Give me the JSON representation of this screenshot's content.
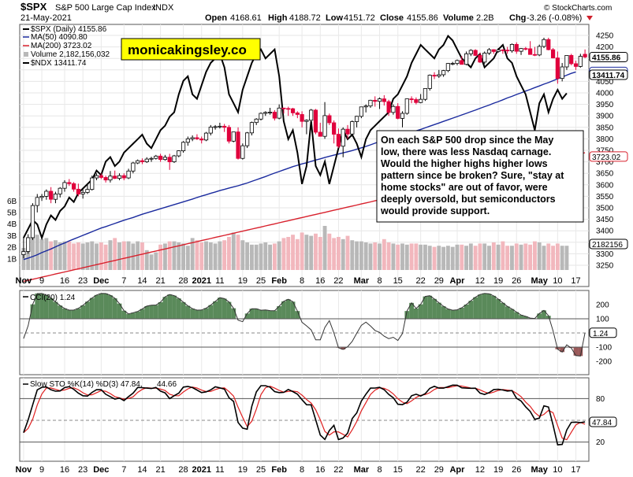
{
  "header": {
    "symbol": "$SPX",
    "name": "S&P 500 Large Cap Index",
    "exchange": "INDX",
    "date": "21-May-2021",
    "open_label": "Open",
    "open": "4168.61",
    "high_label": "High",
    "high": "4188.72",
    "low_label": "Low",
    "low": "4151.72",
    "close_label": "Close",
    "close": "4155.86",
    "volume_label": "Volume",
    "volume": "2.2B",
    "chg_label": "Chg",
    "chg": "-3.26 (-0.08%)",
    "watermark": "© StockCharts.com"
  },
  "banner": "monicakingsley.co",
  "annotation": [
    "On each S&P 500 drop since the May",
    "low, there was less Nasdaq carnage.",
    "Would the higher highs higher lows",
    "pattern since be broken? Sure, \"stay at",
    "home stocks\" are out of favor, were",
    "deeply oversold, but semiconductors",
    "would provide support."
  ],
  "legend": {
    "spx": "$SPX (Daily) 4155.86",
    "ma50": "MA(50) 4090.80",
    "ma200": "MA(200) 3723.02",
    "volume": "Volume 2,182,156,032",
    "ndx": "$NDX 13411.74"
  },
  "colors": {
    "up": "#ffffff",
    "down": "#e0003c",
    "ma50": "#1a2a9e",
    "ma200": "#d8202c",
    "volume": "#b8b8b8",
    "volume_down": "#f2b7bd",
    "cci_fill": "#5a8a5a",
    "cci_neg_fill": "#9a5858",
    "sto_k": "#000000",
    "sto_d": "#e02020",
    "text_red": "#d0202c"
  },
  "x_axis": {
    "labels": [
      {
        "t": "Nov",
        "bold": true
      },
      {
        "t": "9"
      },
      {
        "t": "16"
      },
      {
        "t": "23"
      },
      {
        "t": "Dec",
        "bold": true
      },
      {
        "t": "7"
      },
      {
        "t": "14"
      },
      {
        "t": "21"
      },
      {
        "t": "28"
      },
      {
        "t": "2021",
        "bold": true
      },
      {
        "t": "11"
      },
      {
        "t": "19"
      },
      {
        "t": "25"
      },
      {
        "t": "Feb",
        "bold": true
      },
      {
        "t": "8"
      },
      {
        "t": "16"
      },
      {
        "t": "22"
      },
      {
        "t": "Mar",
        "bold": true
      },
      {
        "t": "8"
      },
      {
        "t": "15"
      },
      {
        "t": "22"
      },
      {
        "t": "29"
      },
      {
        "t": "Apr",
        "bold": true
      },
      {
        "t": "12"
      },
      {
        "t": "19"
      },
      {
        "t": "26"
      },
      {
        "t": "May",
        "bold": true
      },
      {
        "t": "10"
      },
      {
        "t": "17"
      }
    ]
  },
  "price_axis": {
    "ticks": [
      "4250",
      "4200",
      "4150",
      "4100",
      "4050",
      "4000",
      "3950",
      "3900",
      "3850",
      "3800",
      "3750",
      "3700",
      "3650",
      "3600",
      "3550",
      "3500",
      "3450",
      "3400",
      "3350",
      "3300",
      "3250"
    ],
    "tags": [
      {
        "t": "4155.86",
        "bold": true
      },
      {
        "t": "4090.80"
      },
      {
        "t": "13411.74",
        "bold": true
      },
      {
        "t": "3723.02"
      },
      {
        "t": "2182156"
      }
    ]
  },
  "volume_axis": {
    "ticks": [
      "6B",
      "5B",
      "4B",
      "3B",
      "2B",
      "1B"
    ]
  },
  "cci": {
    "label": "CCI(20) 1.24",
    "ticks": [
      "200",
      "100",
      "-100",
      "-200"
    ],
    "tag": "1.24"
  },
  "sto": {
    "label": "Slow STO %K(14) %D(3) 47.84,",
    "label_d": "44.66",
    "ticks": [
      "80",
      "20"
    ],
    "tag": "47.84"
  },
  "chart_data": {
    "type": "candlestick",
    "title": "$SPX S&P 500 Large Cap Index",
    "ylim": [
      3200,
      4260
    ],
    "spx_ohlc": [
      [
        3296,
        3371,
        3280,
        3310
      ],
      [
        3310,
        3385,
        3300,
        3370
      ],
      [
        3370,
        3520,
        3360,
        3510
      ],
      [
        3510,
        3560,
        3480,
        3545
      ],
      [
        3545,
        3560,
        3530,
        3550
      ],
      [
        3550,
        3580,
        3535,
        3572
      ],
      [
        3572,
        3590,
        3520,
        3537
      ],
      [
        3537,
        3570,
        3520,
        3560
      ],
      [
        3560,
        3590,
        3545,
        3585
      ],
      [
        3585,
        3620,
        3570,
        3610
      ],
      [
        3610,
        3625,
        3595,
        3605
      ],
      [
        3605,
        3612,
        3570,
        3581
      ],
      [
        3581,
        3605,
        3550,
        3560
      ],
      [
        3560,
        3580,
        3540,
        3567
      ],
      [
        3567,
        3600,
        3560,
        3580
      ],
      [
        3580,
        3640,
        3575,
        3630
      ],
      [
        3630,
        3650,
        3620,
        3640
      ],
      [
        3640,
        3650,
        3625,
        3632
      ],
      [
        3632,
        3640,
        3610,
        3621
      ],
      [
        3621,
        3660,
        3610,
        3638
      ],
      [
        3638,
        3662,
        3625,
        3628
      ],
      [
        3628,
        3650,
        3620,
        3640
      ],
      [
        3640,
        3650,
        3620,
        3630
      ],
      [
        3630,
        3670,
        3625,
        3660
      ],
      [
        3660,
        3700,
        3650,
        3695
      ],
      [
        3695,
        3710,
        3690,
        3705
      ],
      [
        3705,
        3715,
        3690,
        3700
      ],
      [
        3700,
        3720,
        3695,
        3712
      ],
      [
        3712,
        3722,
        3700,
        3715
      ],
      [
        3715,
        3730,
        3710,
        3725
      ],
      [
        3725,
        3735,
        3700,
        3710
      ],
      [
        3710,
        3730,
        3705,
        3720
      ],
      [
        3720,
        3735,
        3665,
        3700
      ],
      [
        3700,
        3730,
        3695,
        3726
      ],
      [
        3726,
        3750,
        3720,
        3748
      ],
      [
        3748,
        3790,
        3740,
        3785
      ],
      [
        3785,
        3810,
        3770,
        3800
      ],
      [
        3800,
        3815,
        3790,
        3805
      ],
      [
        3805,
        3820,
        3795,
        3800
      ],
      [
        3800,
        3810,
        3780,
        3795
      ],
      [
        3795,
        3830,
        3790,
        3825
      ],
      [
        3825,
        3860,
        3815,
        3851
      ],
      [
        3851,
        3860,
        3840,
        3853
      ],
      [
        3853,
        3870,
        3845,
        3855
      ],
      [
        3855,
        3865,
        3830,
        3850
      ],
      [
        3850,
        3860,
        3780,
        3790
      ],
      [
        3790,
        3830,
        3785,
        3830
      ],
      [
        3830,
        3850,
        3710,
        3715
      ],
      [
        3715,
        3780,
        3710,
        3770
      ],
      [
        3770,
        3830,
        3760,
        3826
      ],
      [
        3826,
        3875,
        3815,
        3871
      ],
      [
        3871,
        3890,
        3860,
        3886
      ],
      [
        3886,
        3915,
        3880,
        3911
      ],
      [
        3911,
        3920,
        3900,
        3915
      ],
      [
        3915,
        3935,
        3905,
        3916
      ],
      [
        3916,
        3925,
        3880,
        3890
      ],
      [
        3890,
        3950,
        3885,
        3934
      ],
      [
        3934,
        3935,
        3910,
        3932
      ],
      [
        3932,
        3940,
        3900,
        3931
      ],
      [
        3931,
        3935,
        3900,
        3913
      ],
      [
        3913,
        3920,
        3890,
        3906
      ],
      [
        3906,
        3920,
        3850,
        3876
      ],
      [
        3876,
        3885,
        3820,
        3881
      ],
      [
        3881,
        3930,
        3870,
        3925
      ],
      [
        3925,
        3930,
        3820,
        3829
      ],
      [
        3829,
        3870,
        3810,
        3811
      ],
      [
        3811,
        3960,
        3800,
        3901
      ],
      [
        3901,
        3910,
        3860,
        3870
      ],
      [
        3870,
        3880,
        3780,
        3820
      ],
      [
        3820,
        3845,
        3760,
        3768
      ],
      [
        3768,
        3850,
        3720,
        3842
      ],
      [
        3842,
        3860,
        3800,
        3821
      ],
      [
        3821,
        3880,
        3810,
        3875
      ],
      [
        3875,
        3900,
        3850,
        3898
      ],
      [
        3898,
        3940,
        3890,
        3939
      ],
      [
        3939,
        3950,
        3915,
        3943
      ],
      [
        3943,
        3970,
        3935,
        3968
      ],
      [
        3968,
        3985,
        3940,
        3963
      ],
      [
        3963,
        3980,
        3930,
        3974
      ],
      [
        3974,
        3990,
        3945,
        3962
      ],
      [
        3962,
        3970,
        3900,
        3915
      ],
      [
        3915,
        3950,
        3905,
        3941
      ],
      [
        3941,
        3955,
        3885,
        3889
      ],
      [
        3889,
        3920,
        3850,
        3911
      ],
      [
        3911,
        3970,
        3905,
        3974
      ],
      [
        3974,
        3985,
        3955,
        3971
      ],
      [
        3971,
        3980,
        3950,
        3958
      ],
      [
        3958,
        3995,
        3955,
        3972
      ],
      [
        3972,
        4020,
        3965,
        4019
      ],
      [
        4019,
        4080,
        4010,
        4077
      ],
      [
        4077,
        4090,
        4060,
        4073
      ],
      [
        4073,
        4100,
        4065,
        4079
      ],
      [
        4079,
        4100,
        4070,
        4097
      ],
      [
        4097,
        4130,
        4090,
        4128
      ],
      [
        4128,
        4135,
        4120,
        4128
      ],
      [
        4128,
        4145,
        4120,
        4141
      ],
      [
        4141,
        4160,
        4135,
        4124
      ],
      [
        4124,
        4180,
        4120,
        4170
      ],
      [
        4170,
        4190,
        4160,
        4185
      ],
      [
        4185,
        4190,
        4160,
        4163
      ],
      [
        4163,
        4175,
        4130,
        4134
      ],
      [
        4134,
        4180,
        4125,
        4173
      ],
      [
        4173,
        4195,
        4165,
        4188
      ],
      [
        4188,
        4190,
        4170,
        4180
      ],
      [
        4180,
        4195,
        4175,
        4187
      ],
      [
        4187,
        4190,
        4170,
        4186
      ],
      [
        4186,
        4200,
        4170,
        4183
      ],
      [
        4183,
        4215,
        4175,
        4211
      ],
      [
        4211,
        4220,
        4170,
        4181
      ],
      [
        4181,
        4195,
        4165,
        4193
      ],
      [
        4193,
        4200,
        4185,
        4192
      ],
      [
        4192,
        4225,
        4188,
        4167
      ],
      [
        4167,
        4200,
        4160,
        4165
      ],
      [
        4165,
        4210,
        4160,
        4202
      ],
      [
        4202,
        4240,
        4195,
        4232
      ],
      [
        4232,
        4240,
        4185,
        4188
      ],
      [
        4188,
        4195,
        4150,
        4152
      ],
      [
        4152,
        4180,
        4040,
        4063
      ],
      [
        4063,
        4130,
        4050,
        4113
      ],
      [
        4113,
        4150,
        4100,
        4163
      ],
      [
        4163,
        4170,
        4120,
        4127
      ],
      [
        4127,
        4140,
        4100,
        4115
      ],
      [
        4115,
        4170,
        4110,
        4159
      ],
      [
        4168,
        4189,
        4151,
        4156
      ]
    ],
    "volume_billions": [
      2.0,
      2.1,
      3.6,
      3.2,
      2.8,
      2.9,
      2.6,
      2.7,
      2.5,
      2.6,
      2.6,
      2.4,
      2.5,
      2.4,
      2.5,
      2.6,
      2.4,
      2.5,
      2.3,
      2.7,
      2.9,
      2.5,
      2.6,
      2.6,
      2.4,
      2.6,
      2.5,
      1.8,
      1.4,
      1.6,
      2.3,
      2.4,
      2.6,
      2.6,
      2.5,
      2.4,
      2.2,
      2.9,
      2.7,
      2.5,
      2.6,
      2.5,
      2.4,
      2.6,
      2.7,
      3.0,
      3.4,
      3.2,
      2.7,
      2.5,
      2.3,
      2.3,
      2.4,
      2.5,
      2.3,
      2.4,
      2.6,
      2.9,
      3.0,
      3.2,
      2.8,
      3.4,
      3.2,
      3.1,
      3.3,
      3.0,
      4.0,
      3.3,
      2.9,
      3.0,
      2.8,
      3.1,
      2.7,
      2.6,
      2.6,
      2.5,
      2.4,
      2.5,
      2.4,
      2.8,
      2.5,
      2.4,
      2.3,
      2.4,
      2.3,
      2.4,
      2.4,
      2.3,
      2.3,
      2.2,
      2.1,
      2.2,
      2.1,
      2.2,
      2.1,
      2.3,
      2.3,
      2.2,
      2.4,
      2.2,
      2.4,
      2.4,
      2.2,
      2.5,
      2.3,
      2.6,
      2.2,
      2.2,
      2.4,
      2.3,
      2.4,
      2.3,
      2.6,
      2.5,
      2.2,
      2.4,
      2.2,
      2.4,
      2.2,
      2.2
    ],
    "ma50": [
      3275,
      3281,
      3288,
      3296,
      3305,
      3313,
      3321,
      3330,
      3339,
      3347,
      3356,
      3364,
      3372,
      3380,
      3388,
      3396,
      3404,
      3412,
      3418,
      3425,
      3432,
      3439,
      3446,
      3452,
      3458,
      3465,
      3472,
      3478,
      3484,
      3490,
      3496,
      3502,
      3508,
      3514,
      3520,
      3526,
      3532,
      3538,
      3545,
      3551,
      3557,
      3563,
      3569,
      3575,
      3580,
      3586,
      3591,
      3596,
      3602,
      3608,
      3615,
      3622,
      3629,
      3636,
      3644,
      3651,
      3658,
      3665,
      3672,
      3679,
      3685,
      3691,
      3696,
      3702,
      3708,
      3713,
      3719,
      3724,
      3729,
      3734,
      3739,
      3744,
      3749,
      3755,
      3761,
      3767,
      3774,
      3781,
      3788,
      3795,
      3801,
      3807,
      3813,
      3818,
      3823,
      3829,
      3835,
      3841,
      3848,
      3855,
      3862,
      3869,
      3876,
      3883,
      3890,
      3897,
      3904,
      3911,
      3918,
      3925,
      3933,
      3940,
      3947,
      3955,
      3962,
      3970,
      3978,
      3985,
      3993,
      4000,
      4008,
      4015,
      4023,
      4030,
      4038,
      4045,
      4053,
      4061,
      4069,
      4077,
      4085,
      4091
    ],
    "ndx": [
      11800,
      11900,
      12000,
      11950,
      11800,
      11950,
      12050,
      12000,
      12100,
      12150,
      12250,
      12200,
      12300,
      12350,
      12400,
      12450,
      12550,
      12500,
      12650,
      12700,
      12600,
      12650,
      12750,
      12800,
      12850,
      12900,
      12950,
      12850,
      12800,
      12900,
      13000,
      13050,
      13150,
      13200,
      13400,
      13550,
      13600,
      13400,
      13350,
      13500,
      13650,
      13750,
      13800,
      13850,
      13700,
      13400,
      13300,
      13200,
      13450,
      13600,
      13750,
      13850,
      13900,
      13800,
      13850,
      13900,
      13600,
      13100,
      12900,
      13000,
      12750,
      12400,
      12600,
      13100,
      12600,
      12500,
      12650,
      12400,
      12600,
      12800,
      13000,
      12900,
      12950,
      12850,
      12700,
      12900,
      13000,
      13050,
      13100,
      13150,
      13200,
      13350,
      13400,
      13500,
      13600,
      13750,
      13850,
      13950,
      13900,
      13850,
      13800,
      13900,
      13950,
      14050,
      14000,
      13900,
      13800,
      13750,
      13700,
      13800,
      13850,
      13700,
      13750,
      13800,
      13900,
      13950,
      13800,
      13750,
      13600,
      13500,
      13400,
      13200,
      13000,
      13300,
      13400,
      13200,
      13350,
      13450,
      13350,
      13411
    ]
  }
}
